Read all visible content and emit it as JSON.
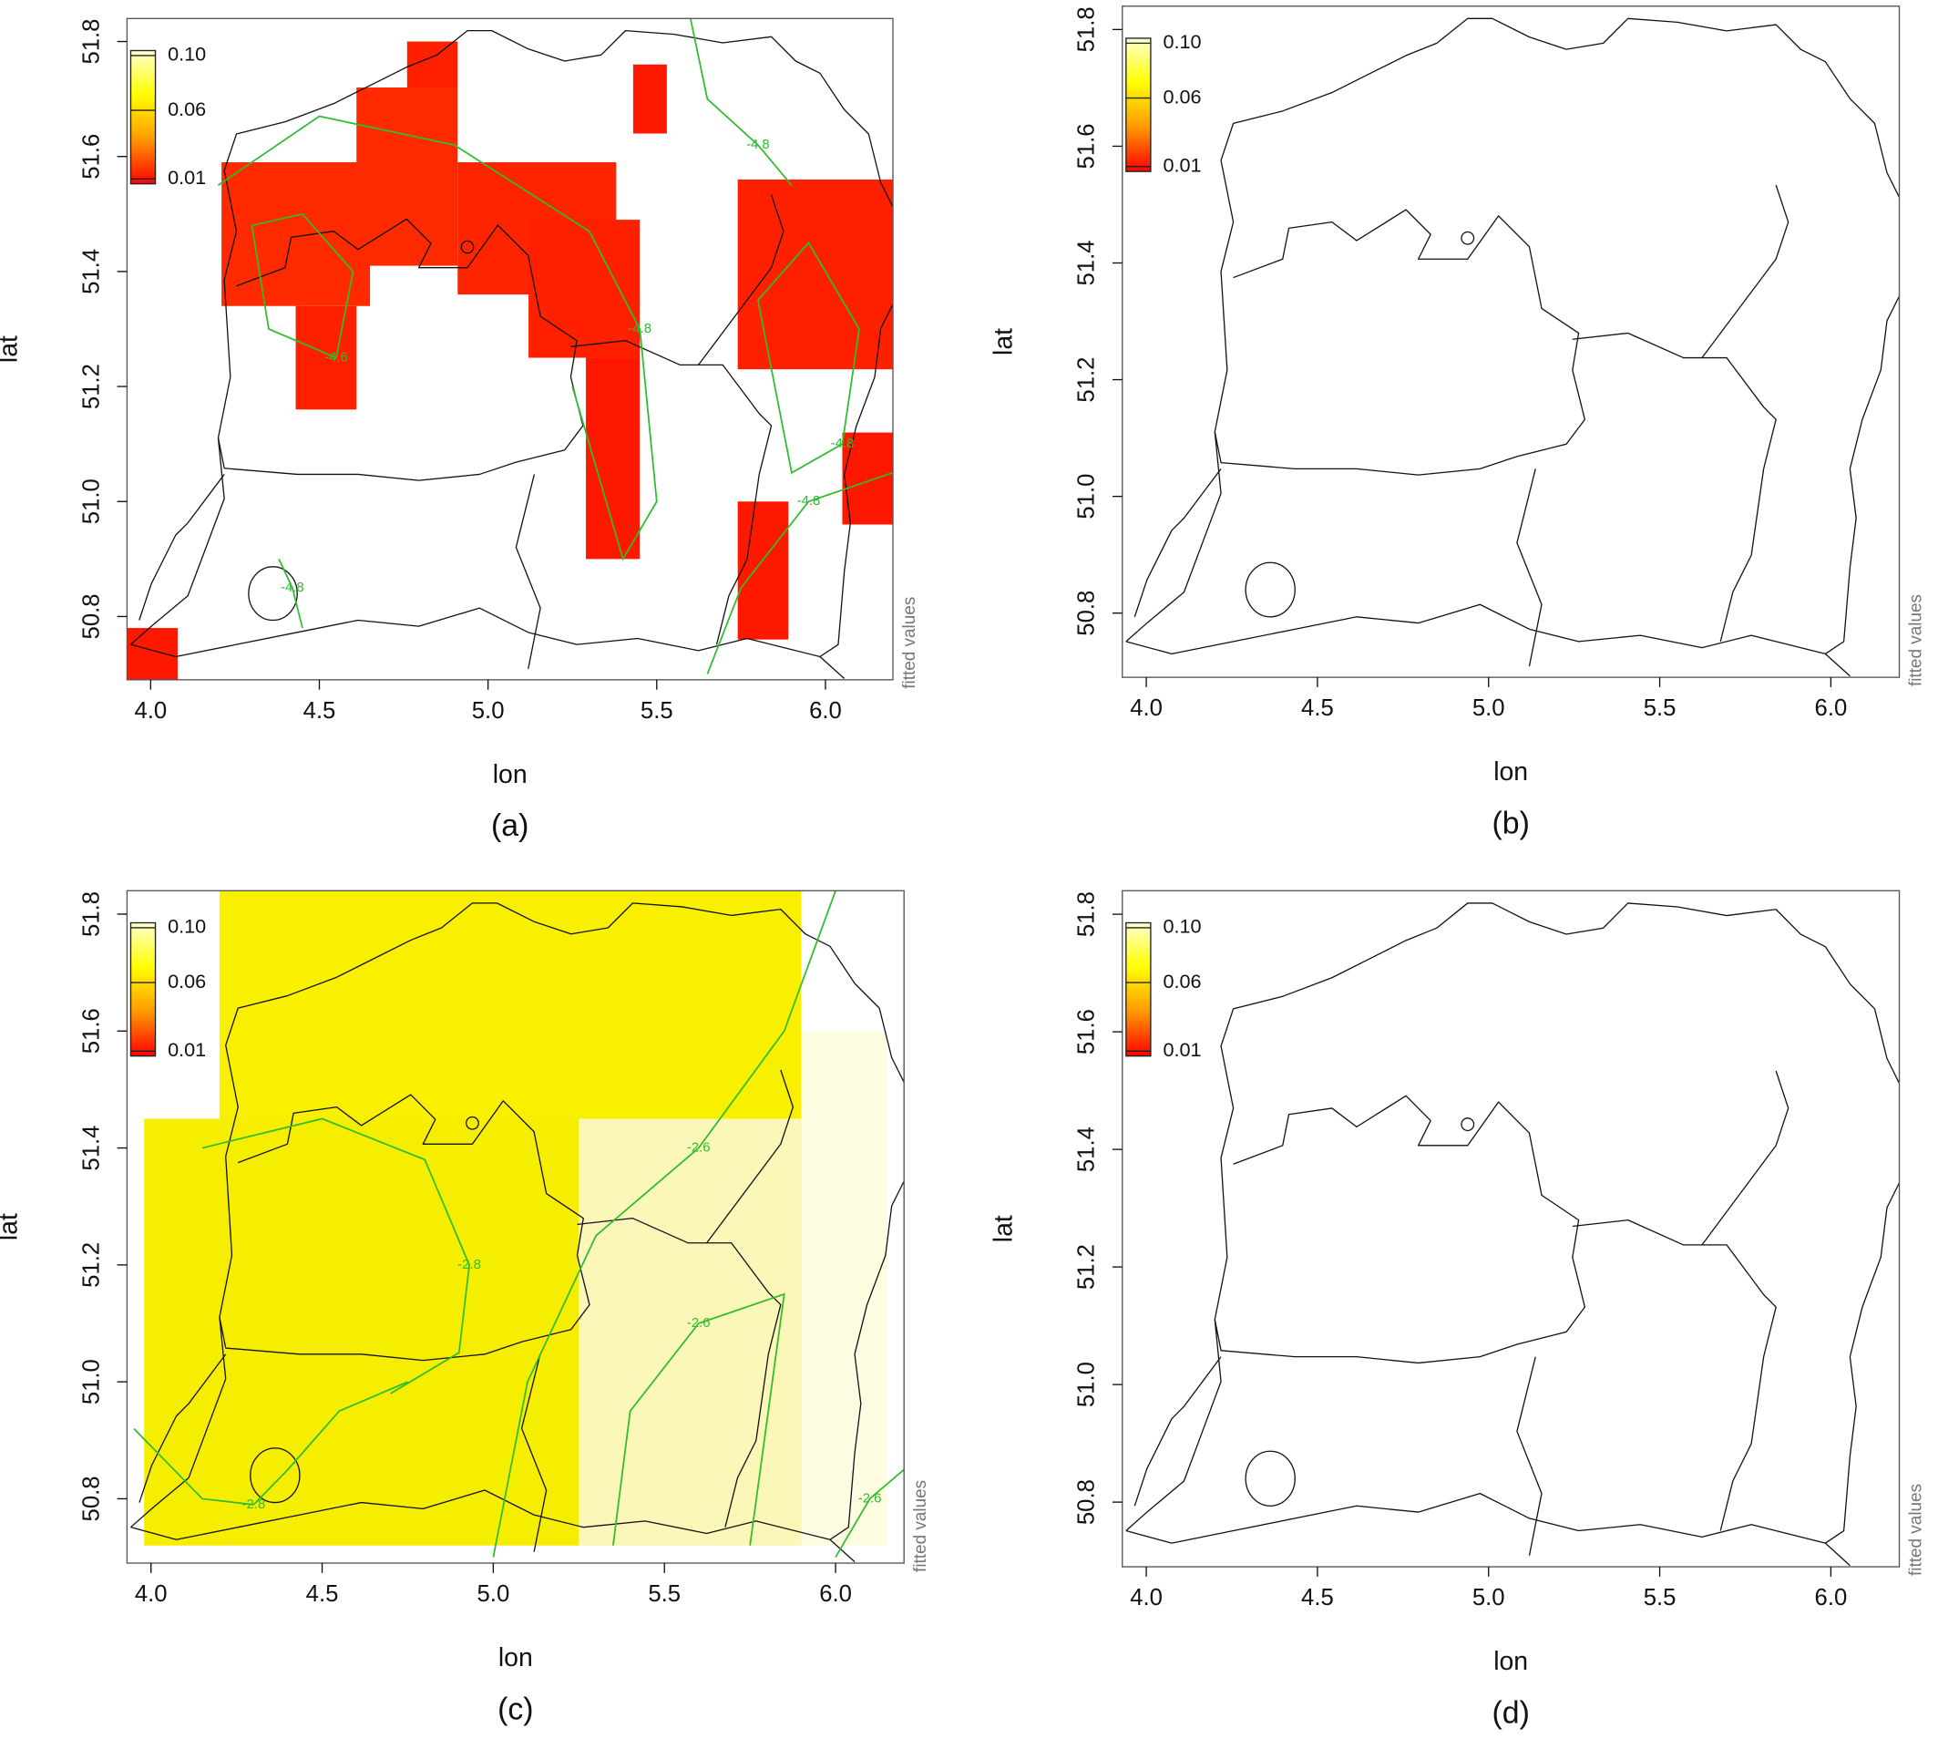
{
  "chart_data": [
    {
      "type": "heatmap",
      "caption": "(a)",
      "xlabel": "lon",
      "ylabel": "lat",
      "colorbar_label": "fitted values",
      "xlim": [
        3.93,
        6.2
      ],
      "ylim": [
        50.69,
        51.84
      ],
      "xticks": [
        {
          "value": 4,
          "label": "4.0"
        },
        4.5,
        {
          "value": 5,
          "label": "5.0"
        },
        5.5,
        {
          "value": 6,
          "label": "6.0"
        }
      ],
      "yticks": [
        50.8,
        {
          "value": 51,
          "label": "51.0"
        },
        51.2,
        51.4,
        51.6,
        51.8
      ],
      "colorbar": {
        "ticks": [
          {
            "value": 0.1,
            "label": "0.10"
          },
          0.06,
          0.01
        ],
        "colors": [
          "#ffffd0",
          "#ffff00",
          "#ff9900",
          "#ff0000"
        ]
      },
      "contour_color": "#2ebd2e",
      "cells": [
        {
          "lon": [
            4.21,
            4.65
          ],
          "lat": [
            51.34,
            51.59
          ],
          "color": "#ff2a00"
        },
        {
          "lon": [
            4.43,
            4.61
          ],
          "lat": [
            51.16,
            51.34
          ],
          "color": "#ff2000"
        },
        {
          "lon": [
            4.61,
            4.91
          ],
          "lat": [
            51.41,
            51.72
          ],
          "color": "#ff2a00"
        },
        {
          "lon": [
            4.76,
            4.91
          ],
          "lat": [
            51.72,
            51.8
          ],
          "color": "#ff2000"
        },
        {
          "lon": [
            4.91,
            5.38
          ],
          "lat": [
            51.36,
            51.59
          ],
          "color": "#ff2400"
        },
        {
          "lon": [
            5.12,
            5.45
          ],
          "lat": [
            51.25,
            51.49
          ],
          "color": "#ff2000"
        },
        {
          "lon": [
            5.29,
            5.45
          ],
          "lat": [
            50.9,
            51.25
          ],
          "color": "#ff1800"
        },
        {
          "lon": [
            5.43,
            5.53
          ],
          "lat": [
            51.64,
            51.76
          ],
          "color": "#ff1800"
        },
        {
          "lon": [
            5.74,
            6.2
          ],
          "lat": [
            51.23,
            51.56
          ],
          "color": "#ff2000"
        },
        {
          "lon": [
            5.74,
            5.89
          ],
          "lat": [
            50.76,
            51.0
          ],
          "color": "#ff1800"
        },
        {
          "lon": [
            6.05,
            6.2
          ],
          "lat": [
            50.96,
            51.12
          ],
          "color": "#ff1800"
        },
        {
          "lon": [
            3.93,
            4.08
          ],
          "lat": [
            50.69,
            50.78
          ],
          "color": "#ff1800"
        }
      ],
      "contours": [
        {
          "label": "-4.8",
          "lon": [
            4.2,
            4.5,
            4.9,
            5.3,
            5.45,
            5.5,
            5.4,
            5.25
          ],
          "lat": [
            51.55,
            51.67,
            51.62,
            51.47,
            51.3,
            51.0,
            50.9,
            51.2
          ]
        },
        {
          "label": "-4.6",
          "lon": [
            4.3,
            4.45,
            4.6,
            4.55,
            4.35,
            4.3
          ],
          "lat": [
            51.48,
            51.5,
            51.4,
            51.25,
            51.3,
            51.48
          ]
        },
        {
          "label": "-4.8",
          "lon": [
            5.8,
            5.95,
            6.1,
            6.05,
            5.9,
            5.8
          ],
          "lat": [
            51.35,
            51.45,
            51.3,
            51.1,
            51.05,
            51.35
          ]
        },
        {
          "label": "-4.8",
          "lon": [
            5.65,
            5.75,
            5.95,
            6.2
          ],
          "lat": [
            50.7,
            50.85,
            51.0,
            51.05
          ]
        },
        {
          "label": "-4.8",
          "lon": [
            5.6,
            5.65,
            5.8,
            5.9
          ],
          "lat": [
            51.84,
            51.7,
            51.62,
            51.55
          ]
        },
        {
          "label": "-4.8",
          "lon": [
            4.38,
            4.42,
            4.45
          ],
          "lat": [
            50.9,
            50.85,
            50.78
          ]
        }
      ]
    },
    {
      "type": "heatmap",
      "caption": "(b)",
      "xlabel": "lon",
      "ylabel": "lat",
      "colorbar_label": "fitted values",
      "xlim": [
        3.93,
        6.2
      ],
      "ylim": [
        50.69,
        51.84
      ],
      "xticks": [
        {
          "value": 4,
          "label": "4.0"
        },
        4.5,
        {
          "value": 5,
          "label": "5.0"
        },
        5.5,
        {
          "value": 6,
          "label": "6.0"
        }
      ],
      "yticks": [
        50.8,
        {
          "value": 51,
          "label": "51.0"
        },
        51.2,
        51.4,
        51.6,
        51.8
      ],
      "colorbar": {
        "ticks": [
          {
            "value": 0.1,
            "label": "0.10"
          },
          0.06,
          0.01
        ],
        "colors": [
          "#ffffd0",
          "#ffff00",
          "#ff9900",
          "#ff0000"
        ]
      },
      "contour_color": "#2ebd2e",
      "cells": [],
      "contours": []
    },
    {
      "type": "heatmap",
      "caption": "(c)",
      "xlabel": "lon",
      "ylabel": "lat",
      "colorbar_label": "fitted values",
      "xlim": [
        3.93,
        6.2
      ],
      "ylim": [
        50.69,
        51.84
      ],
      "xticks": [
        {
          "value": 4,
          "label": "4.0"
        },
        4.5,
        {
          "value": 5,
          "label": "5.0"
        },
        5.5,
        {
          "value": 6,
          "label": "6.0"
        }
      ],
      "yticks": [
        50.8,
        {
          "value": 51,
          "label": "51.0"
        },
        51.2,
        51.4,
        51.6,
        51.8
      ],
      "colorbar": {
        "ticks": [
          {
            "value": 0.1,
            "label": "0.10"
          },
          0.06,
          0.01
        ],
        "colors": [
          "#ffffd0",
          "#ffff00",
          "#ff9900",
          "#ff0000"
        ]
      },
      "contour_color": "#2ebd2e",
      "cells": [
        {
          "lon": [
            4.2,
            5.9
          ],
          "lat": [
            51.45,
            51.84
          ],
          "color": "#f9f000"
        },
        {
          "lon": [
            3.98,
            5.25
          ],
          "lat": [
            50.72,
            51.45
          ],
          "color": "#f6ee00"
        },
        {
          "lon": [
            5.25,
            5.9
          ],
          "lat": [
            50.72,
            51.45
          ],
          "color": "#fbf7b8"
        },
        {
          "lon": [
            5.9,
            6.15
          ],
          "lat": [
            50.72,
            51.6
          ],
          "color": "#fdfbe0"
        }
      ],
      "contours": [
        {
          "label": "-2.8",
          "lon": [
            4.15,
            4.5,
            4.8,
            4.93,
            4.9,
            4.7
          ],
          "lat": [
            51.4,
            51.45,
            51.38,
            51.2,
            51.05,
            50.98
          ]
        },
        {
          "label": "-2.8",
          "lon": [
            4.75,
            4.55,
            4.4,
            4.3,
            4.15,
            3.95
          ],
          "lat": [
            51.0,
            50.95,
            50.85,
            50.79,
            50.8,
            50.92
          ]
        },
        {
          "label": "-2.6",
          "lon": [
            5.0,
            5.1,
            5.3,
            5.6,
            5.85,
            6.0
          ],
          "lat": [
            50.7,
            51.0,
            51.25,
            51.4,
            51.6,
            51.84
          ]
        },
        {
          "label": "-2.6",
          "lon": [
            5.35,
            5.4,
            5.6,
            5.85,
            5.75
          ],
          "lat": [
            50.72,
            50.95,
            51.1,
            51.15,
            50.72
          ]
        },
        {
          "label": "-2.6",
          "lon": [
            6.0,
            6.1,
            6.2
          ],
          "lat": [
            50.7,
            50.8,
            50.85
          ]
        }
      ]
    },
    {
      "type": "heatmap",
      "caption": "(d)",
      "xlabel": "lon",
      "ylabel": "lat",
      "colorbar_label": "fitted values",
      "xlim": [
        3.93,
        6.2
      ],
      "ylim": [
        50.69,
        51.84
      ],
      "xticks": [
        {
          "value": 4,
          "label": "4.0"
        },
        4.5,
        {
          "value": 5,
          "label": "5.0"
        },
        5.5,
        {
          "value": 6,
          "label": "6.0"
        }
      ],
      "yticks": [
        50.8,
        {
          "value": 51,
          "label": "51.0"
        },
        51.2,
        51.4,
        51.6,
        51.8
      ],
      "colorbar": {
        "ticks": [
          {
            "value": 0.1,
            "label": "0.10"
          },
          0.06,
          0.01
        ],
        "colors": [
          "#ffffd0",
          "#ffff00",
          "#ff9900",
          "#ff0000"
        ]
      },
      "contour_color": "#2ebd2e",
      "cells": [],
      "contours": []
    }
  ]
}
